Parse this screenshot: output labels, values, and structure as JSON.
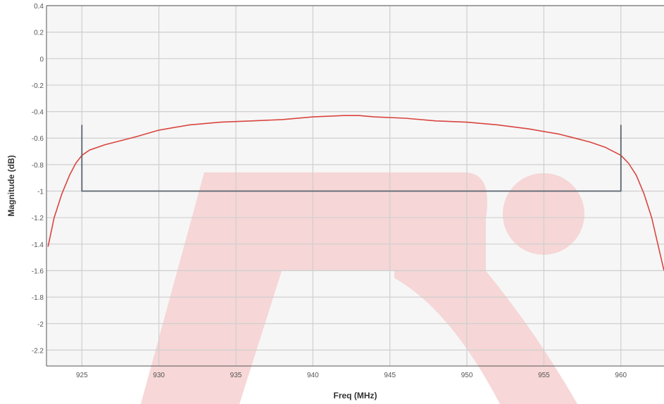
{
  "chart_data": {
    "type": "line",
    "title": "",
    "xlabel": "Freq (MHz)",
    "ylabel": "Magnitude (dB)",
    "xlim": [
      922.7,
      962.8
    ],
    "ylim": [
      -2.32,
      0.4
    ],
    "x_ticks": [
      925,
      930,
      935,
      940,
      945,
      950,
      955,
      960
    ],
    "x_tick_labels": [
      "925",
      "930",
      "935",
      "940",
      "945",
      "950",
      "955",
      "960"
    ],
    "y_ticks": [
      0.4,
      0.2,
      0,
      -0.2,
      -0.4,
      -0.6,
      -0.8,
      -1,
      -1.2,
      -1.4,
      -1.6,
      -1.8,
      -2,
      -2.2
    ],
    "y_tick_labels": [
      "0.4",
      "0.2",
      "0",
      "-0.2",
      "-0.4",
      "-0.6",
      "-0.8",
      "-1",
      "-1.2",
      "-1.4",
      "-1.6",
      "-1.8",
      "-2",
      "-2.2"
    ],
    "grid": true,
    "background_color": "#f6f6f6",
    "grid_color": "#cfcfcf",
    "series": [
      {
        "color": "#d9453f",
        "x": [
          922.8,
          923.2,
          923.7,
          924.2,
          924.6,
          925,
          925.5,
          926.5,
          927.5,
          928.5,
          930,
          932,
          934,
          936,
          938,
          940,
          942,
          943,
          944,
          946,
          948,
          950,
          952,
          954,
          956,
          957,
          958,
          959,
          959.5,
          960,
          960.5,
          961,
          961.5,
          962,
          962.5,
          962.8
        ],
        "y": [
          -1.42,
          -1.2,
          -1.02,
          -0.88,
          -0.79,
          -0.73,
          -0.69,
          -0.65,
          -0.62,
          -0.59,
          -0.54,
          -0.5,
          -0.48,
          -0.47,
          -0.46,
          -0.44,
          -0.43,
          -0.43,
          -0.44,
          -0.45,
          -0.47,
          -0.48,
          -0.5,
          -0.53,
          -0.57,
          -0.6,
          -0.63,
          -0.67,
          -0.7,
          -0.73,
          -0.79,
          -0.88,
          -1.02,
          -1.2,
          -1.45,
          -1.6
        ]
      },
      {
        "color": "#5a6470",
        "x": [
          925,
          925,
          960,
          960
        ],
        "y": [
          -0.5,
          -1.0,
          -1.0,
          -0.5
        ]
      }
    ],
    "watermark_color": "#f6d0d0"
  }
}
